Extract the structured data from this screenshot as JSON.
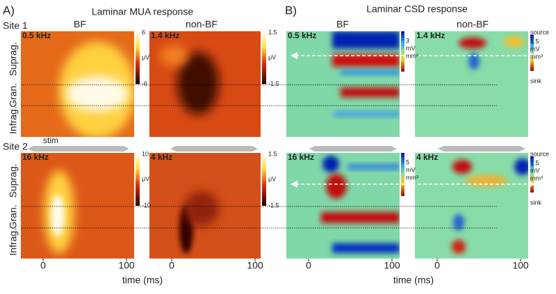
{
  "panels": [
    {
      "letter": "A)",
      "title": "Laminar MUA response"
    },
    {
      "letter": "B)",
      "title": "Laminar CSD response"
    }
  ],
  "columns": [
    "BF",
    "non-BF",
    "BF",
    "non-BF"
  ],
  "sites": [
    "Site 1",
    "Site 2"
  ],
  "stim": "stim",
  "freqs": [
    [
      "0.5 kHz",
      "1.4 kHz",
      "0.5 kHz",
      "1.4 kHz"
    ],
    [
      "16 kHz",
      "4 kHz",
      "16 kHz",
      "4 kHz"
    ]
  ],
  "layers": [
    "Suprag.",
    "Gran.",
    "Infrag."
  ],
  "mua_scales": [
    [
      [
        "6",
        "μV",
        "-6"
      ],
      [
        "1.5",
        "μV",
        "-1.5"
      ]
    ],
    [
      [
        "10",
        "μV",
        "-10"
      ],
      [
        "1.5",
        "μV",
        "-1.5"
      ]
    ]
  ],
  "csd_scales": [
    [
      [
        "3",
        "mV",
        "mm³"
      ],
      [
        "source",
        "1.5",
        "mV",
        "mm³",
        "sink"
      ]
    ],
    [
      [
        "5",
        "mV",
        "mm³"
      ],
      [
        "source",
        "1.5",
        "mV",
        "mm³",
        "sink"
      ]
    ]
  ],
  "x_ticks": [
    "0",
    "100"
  ],
  "x_label": "time (ms)"
}
